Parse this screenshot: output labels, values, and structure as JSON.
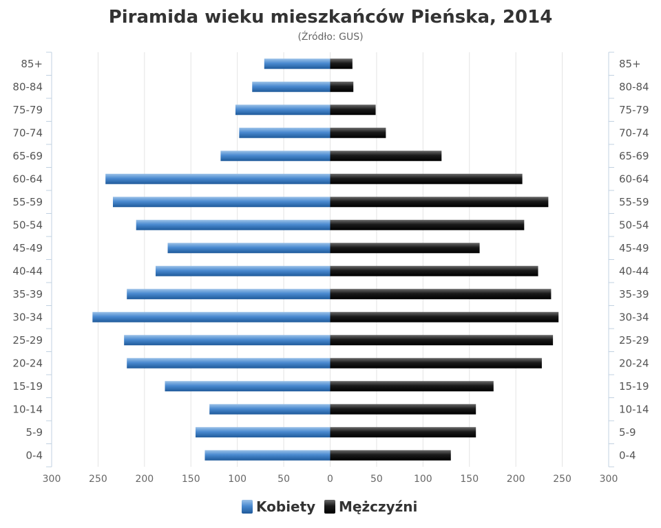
{
  "chart_data": {
    "type": "bar",
    "orientation": "horizontal",
    "title": "Piramida wieku mieszkańców Pieńska, 2014",
    "subtitle": "(Źródło: GUS)",
    "categories": [
      "85+",
      "80-84",
      "75-79",
      "70-74",
      "65-69",
      "60-64",
      "55-59",
      "50-54",
      "45-49",
      "40-44",
      "35-39",
      "30-34",
      "25-29",
      "20-24",
      "15-19",
      "10-14",
      "5-9",
      "0-4"
    ],
    "series": [
      {
        "name": "Kobiety",
        "color": "#3f7fc1",
        "side": "left",
        "values": [
          71,
          84,
          102,
          98,
          118,
          242,
          234,
          209,
          175,
          188,
          219,
          256,
          222,
          219,
          178,
          130,
          145,
          135
        ]
      },
      {
        "name": "Mężczyźni",
        "color": "#111111",
        "side": "right",
        "values": [
          24,
          25,
          49,
          60,
          120,
          207,
          235,
          209,
          161,
          224,
          238,
          246,
          240,
          228,
          176,
          157,
          157,
          130
        ]
      }
    ],
    "xticks": [
      "300",
      "250",
      "200",
      "150",
      "100",
      "50",
      "0",
      "50",
      "100",
      "150",
      "200",
      "250",
      "300"
    ],
    "xlim": [
      -300,
      300
    ],
    "grid": true,
    "legend": "bottom-center"
  }
}
